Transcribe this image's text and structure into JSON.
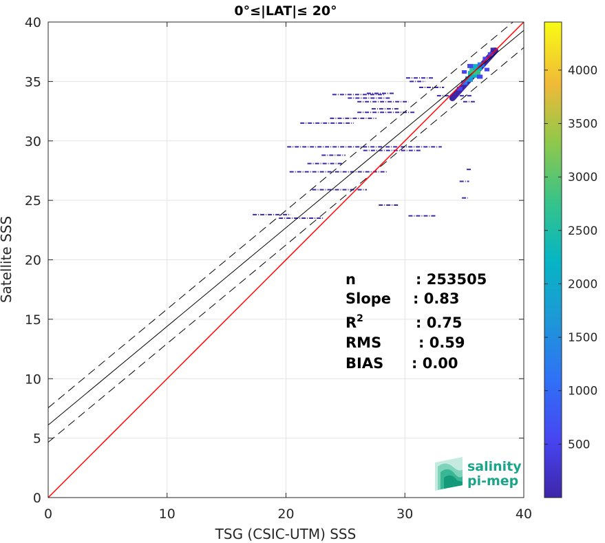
{
  "chart_data": {
    "type": "heatmap",
    "title": "0°≤|LAT|≤ 20°",
    "xlabel": "TSG (CSIC-UTM) SSS",
    "ylabel": "Satellite SSS",
    "xlim": [
      0,
      40
    ],
    "ylim": [
      0,
      40
    ],
    "xticks": [
      0,
      10,
      20,
      30,
      40
    ],
    "yticks": [
      0,
      5,
      10,
      15,
      20,
      25,
      30,
      35,
      40
    ],
    "grid": true,
    "colorbar": {
      "range": [
        0,
        4450
      ],
      "ticks": [
        500,
        1000,
        1500,
        2000,
        2500,
        3000,
        3500,
        4000
      ],
      "colormap": "parula"
    },
    "lines": {
      "identity": {
        "slope": 1,
        "intercept": 0,
        "color": "#ff0000"
      },
      "fit": {
        "slope": 0.83,
        "intercept": 6.1,
        "color": "#000000"
      },
      "fit_upper": {
        "slope": 0.83,
        "intercept": 7.55,
        "color": "#000000",
        "style": "dashed"
      },
      "fit_lower": {
        "slope": 0.83,
        "intercept": 4.65,
        "color": "#000000",
        "style": "dashed"
      }
    },
    "density_core": [
      {
        "x": 34.6,
        "y": 34.4,
        "count": 600
      },
      {
        "x": 35.0,
        "y": 34.9,
        "count": 900
      },
      {
        "x": 35.4,
        "y": 35.2,
        "count": 1500
      },
      {
        "x": 35.7,
        "y": 35.6,
        "count": 2300
      },
      {
        "x": 35.9,
        "y": 35.9,
        "count": 3000
      },
      {
        "x": 36.1,
        "y": 36.2,
        "count": 2000
      },
      {
        "x": 36.4,
        "y": 36.4,
        "count": 1200
      },
      {
        "x": 36.8,
        "y": 36.9,
        "count": 800
      },
      {
        "x": 37.2,
        "y": 37.3,
        "count": 500
      },
      {
        "x": 35.5,
        "y": 36.3,
        "count": 700
      },
      {
        "x": 36.3,
        "y": 35.4,
        "count": 700
      },
      {
        "x": 35.0,
        "y": 35.8,
        "count": 350
      },
      {
        "x": 36.9,
        "y": 36.0,
        "count": 350
      },
      {
        "x": 34.3,
        "y": 33.9,
        "count": 250
      },
      {
        "x": 37.4,
        "y": 37.7,
        "count": 250
      }
    ],
    "sparse_segments": [
      {
        "x1": 17.2,
        "x2": 20.4,
        "y": 23.8
      },
      {
        "x1": 19.4,
        "x2": 23.1,
        "y": 23.5
      },
      {
        "x1": 30.3,
        "x2": 32.6,
        "y": 23.7
      },
      {
        "x1": 27.8,
        "x2": 29.5,
        "y": 24.6
      },
      {
        "x1": 22.2,
        "x2": 26.8,
        "y": 25.9
      },
      {
        "x1": 20.3,
        "x2": 28.5,
        "y": 27.4
      },
      {
        "x1": 21.8,
        "x2": 24.8,
        "y": 28.1
      },
      {
        "x1": 23.0,
        "x2": 25.0,
        "y": 28.8
      },
      {
        "x1": 20.1,
        "x2": 33.1,
        "y": 29.5
      },
      {
        "x1": 26.5,
        "x2": 31.4,
        "y": 29.2
      },
      {
        "x1": 21.2,
        "x2": 25.7,
        "y": 31.5
      },
      {
        "x1": 23.7,
        "x2": 27.6,
        "y": 31.9
      },
      {
        "x1": 26.0,
        "x2": 30.8,
        "y": 32.4
      },
      {
        "x1": 27.2,
        "x2": 29.5,
        "y": 32.7
      },
      {
        "x1": 26.0,
        "x2": 30.3,
        "y": 33.3
      },
      {
        "x1": 25.2,
        "x2": 28.8,
        "y": 33.6
      },
      {
        "x1": 23.9,
        "x2": 28.3,
        "y": 33.9
      },
      {
        "x1": 26.8,
        "x2": 29.1,
        "y": 34.0
      },
      {
        "x1": 32.7,
        "x2": 35.6,
        "y": 33.8
      },
      {
        "x1": 34.9,
        "x2": 36.0,
        "y": 33.3
      },
      {
        "x1": 30.1,
        "x2": 32.4,
        "y": 35.3
      },
      {
        "x1": 30.4,
        "x2": 31.7,
        "y": 35.0
      },
      {
        "x1": 31.2,
        "x2": 33.3,
        "y": 34.5
      },
      {
        "x1": 34.6,
        "x2": 35.4,
        "y": 26.6
      },
      {
        "x1": 35.2,
        "x2": 35.6,
        "y": 27.6
      },
      {
        "x1": 34.8,
        "x2": 35.3,
        "y": 25.2
      }
    ],
    "stats": [
      {
        "label": "n",
        "value": ": 253505"
      },
      {
        "label": "Slope",
        "value": ": 0.83"
      },
      {
        "label": "R",
        "sup": "2",
        "value": ": 0.75"
      },
      {
        "label": "RMS",
        "value": ": 0.59"
      },
      {
        "label": "BIAS",
        "value": ": 0.00"
      }
    ]
  },
  "logo": {
    "line1": "salinity",
    "line2": "pi-mep",
    "color": "#1aa58a"
  }
}
